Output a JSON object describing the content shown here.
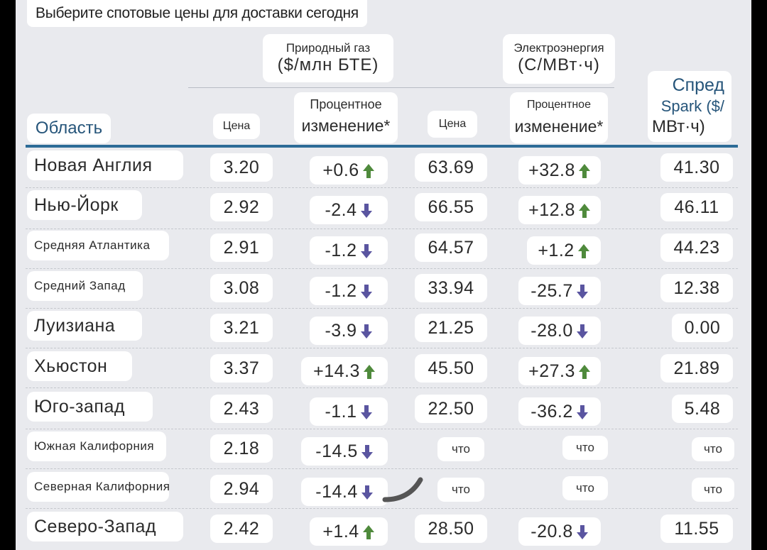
{
  "title": "Выберите спотовые цены для доставки сегодня",
  "groups": {
    "gas": {
      "name": "Природный газ",
      "unit": "($/млн БТЕ)"
    },
    "power": {
      "name": "Электроэнергия",
      "unit": "(С/МВт·ч)"
    }
  },
  "headers": {
    "area": "Область",
    "gas_price": "Цена",
    "gas_change_l1": "Процентное",
    "gas_change_l2": "изменение*",
    "power_price": "Цена",
    "power_change_l1": "Процентное",
    "power_change_l2": "изменение*",
    "spread_l1": "Спред",
    "spread_l2": "Spark ($/",
    "spread_l3": "МВт·ч)"
  },
  "colors": {
    "up": "#4f8a3c",
    "down": "#5a55a0",
    "rule": "#2d6c97",
    "header": "#26557a"
  },
  "rows": [
    {
      "area": "Новая Англия",
      "gas_price": "3.20",
      "gas_change": "+0.6",
      "gas_dir": "up",
      "power_price": "63.69",
      "power_change": "+32.8",
      "power_dir": "up",
      "spread": "41.30"
    },
    {
      "area": "Нью-Йорк",
      "gas_price": "2.92",
      "gas_change": "-2.4",
      "gas_dir": "down",
      "power_price": "66.55",
      "power_change": "+12.8",
      "power_dir": "up",
      "spread": "46.11"
    },
    {
      "area": "Средняя Атлантика",
      "gas_price": "2.91",
      "gas_change": "-1.2",
      "gas_dir": "down",
      "power_price": "64.57",
      "power_change": "+1.2",
      "power_dir": "up",
      "spread": "44.23"
    },
    {
      "area": "Средний Запад",
      "gas_price": "3.08",
      "gas_change": "-1.2",
      "gas_dir": "down",
      "power_price": "33.94",
      "power_change": "-25.7",
      "power_dir": "down",
      "spread": "12.38"
    },
    {
      "area": "Луизиана",
      "gas_price": "3.21",
      "gas_change": "-3.9",
      "gas_dir": "down",
      "power_price": "21.25",
      "power_change": "-28.0",
      "power_dir": "down",
      "spread": "0.00"
    },
    {
      "area": "Хьюстон",
      "gas_price": "3.37",
      "gas_change": "+14.3",
      "gas_dir": "up",
      "power_price": "45.50",
      "power_change": "+27.3",
      "power_dir": "up",
      "spread": "21.89"
    },
    {
      "area": "Юго-запад",
      "gas_price": "2.43",
      "gas_change": "-1.1",
      "gas_dir": "down",
      "power_price": "22.50",
      "power_change": "-36.2",
      "power_dir": "down",
      "spread": "5.48"
    },
    {
      "area": "Южная Калифорния",
      "gas_price": "2.18",
      "gas_change": "-14.5",
      "gas_dir": "down",
      "power_price": "что",
      "power_change": "что",
      "power_dir": "",
      "spread": "что"
    },
    {
      "area": "Северная Калифорния",
      "gas_price": "2.94",
      "gas_change": "-14.4",
      "gas_dir": "down",
      "power_price": "что",
      "power_change": "что",
      "power_dir": "",
      "spread": "что"
    },
    {
      "area": "Северо-Запад",
      "gas_price": "2.42",
      "gas_change": "+1.4",
      "gas_dir": "up",
      "power_price": "28.50",
      "power_change": "-20.8",
      "power_dir": "down",
      "spread": "11.55"
    }
  ]
}
